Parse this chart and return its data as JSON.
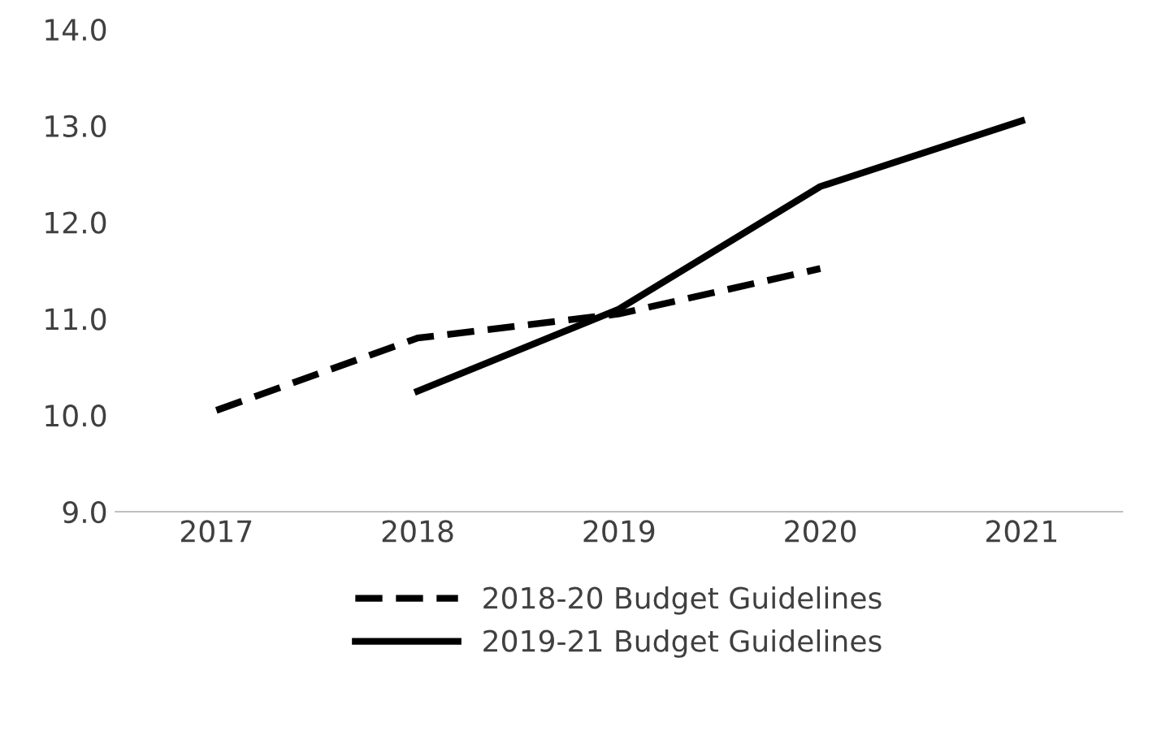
{
  "chart_data": {
    "type": "line",
    "categories": [
      "2017",
      "2018",
      "2019",
      "2020",
      "2021"
    ],
    "series": [
      {
        "name": "2018-20 Budget Guidelines",
        "color": "#000000",
        "line_style": "dashed",
        "values": [
          10.05,
          10.8,
          11.05,
          11.52,
          null
        ]
      },
      {
        "name": "2019-21 Budget Guidelines",
        "color": "#000000",
        "line_style": "solid",
        "values": [
          null,
          10.25,
          11.1,
          12.37,
          13.05
        ]
      }
    ],
    "ylim": [
      9,
      14
    ],
    "yticks": [
      {
        "value": 9,
        "label": "9.0"
      },
      {
        "value": 10,
        "label": "10.0"
      },
      {
        "value": 11,
        "label": "11.0"
      },
      {
        "value": 12,
        "label": "12.0"
      },
      {
        "value": 13,
        "label": "13.0"
      },
      {
        "value": 14,
        "label": "14.0"
      }
    ],
    "grid": false,
    "legend": "bottom",
    "marker": "none"
  }
}
